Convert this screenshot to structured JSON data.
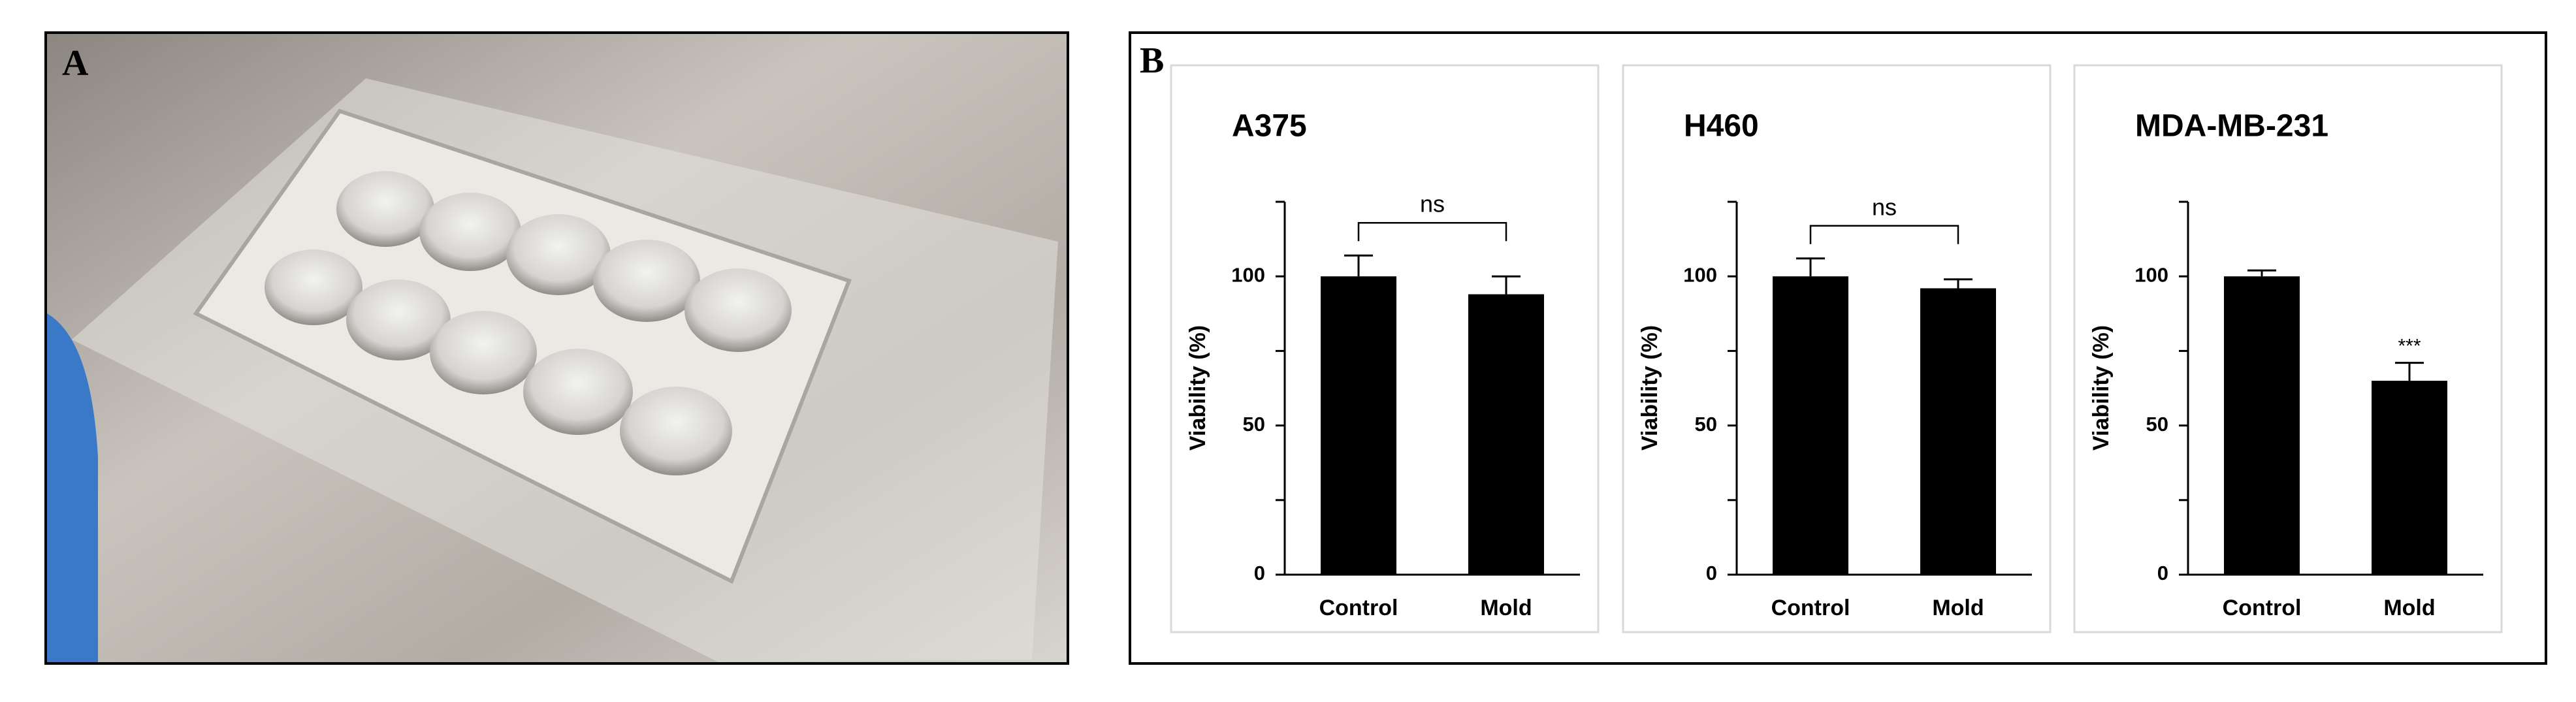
{
  "panel_labels": [
    "A",
    "B"
  ],
  "chart_data": [
    {
      "type": "bar",
      "title": "A375",
      "ylabel": "Viability (%)",
      "categories": [
        "Control",
        "Mold"
      ],
      "values": [
        100,
        94
      ],
      "errors": [
        7,
        6
      ],
      "color": "#000000",
      "ylim": [
        0,
        125
      ],
      "yticks": [
        0,
        50,
        100
      ],
      "yminorticks": [
        25,
        75,
        125
      ],
      "annotation": "ns",
      "annotation_bracket": true
    },
    {
      "type": "bar",
      "title": "H460",
      "ylabel": "Viability (%)",
      "categories": [
        "Control",
        "Mold"
      ],
      "values": [
        100,
        96
      ],
      "errors": [
        6,
        3
      ],
      "color": "#000000",
      "ylim": [
        0,
        125
      ],
      "yticks": [
        0,
        50,
        100
      ],
      "yminorticks": [
        25,
        75,
        125
      ],
      "annotation": "ns",
      "annotation_bracket": true
    },
    {
      "type": "bar",
      "title": "MDA-MB-231",
      "ylabel": "Viability (%)",
      "categories": [
        "Control",
        "Mold"
      ],
      "values": [
        100,
        65
      ],
      "errors": [
        2,
        6
      ],
      "color": "#000000",
      "ylim": [
        0,
        125
      ],
      "yticks": [
        0,
        50,
        100
      ],
      "yminorticks": [
        25,
        75,
        125
      ],
      "annotation": "***",
      "annotation_bracket": false
    }
  ]
}
